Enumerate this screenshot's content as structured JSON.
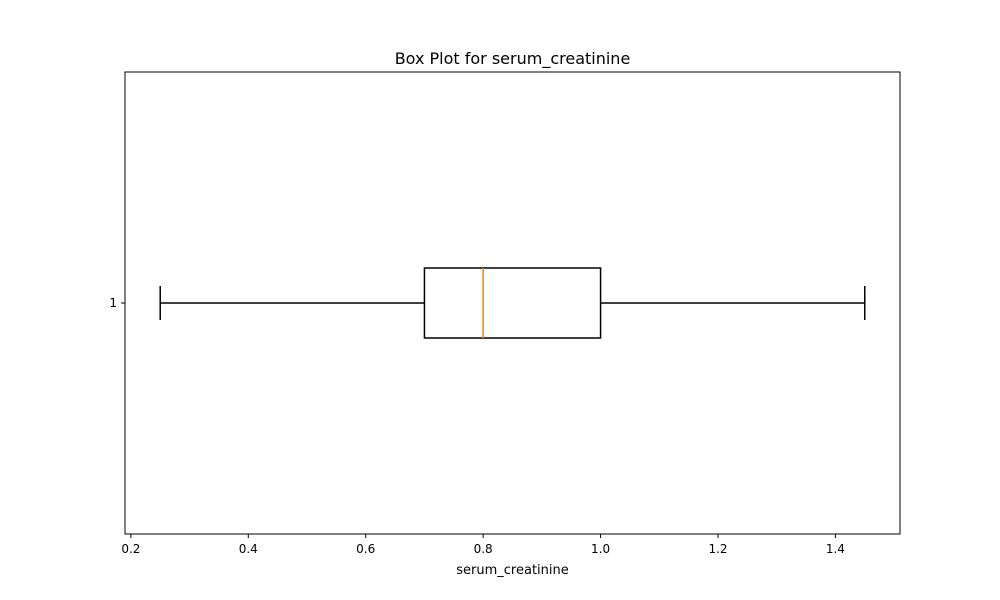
{
  "chart_data": {
    "type": "boxplot",
    "orientation": "horizontal",
    "title": "Box Plot for serum_creatinine",
    "xlabel": "serum_creatinine",
    "ylabel": "",
    "xlim": [
      0.19,
      1.51
    ],
    "x_ticks": [
      0.2,
      0.4,
      0.6,
      0.8,
      1.0,
      1.2,
      1.4
    ],
    "x_tick_labels": [
      "0.2",
      "0.4",
      "0.6",
      "0.8",
      "1.0",
      "1.2",
      "1.4"
    ],
    "y_tick_labels": [
      "1"
    ],
    "boxes": [
      {
        "label": "1",
        "whisker_low": 0.25,
        "q1": 0.7,
        "median": 0.8,
        "q3": 1.0,
        "whisker_high": 1.45
      }
    ],
    "grid": false,
    "colors": {
      "box": "#000000",
      "median": "#ff7f0e"
    }
  }
}
